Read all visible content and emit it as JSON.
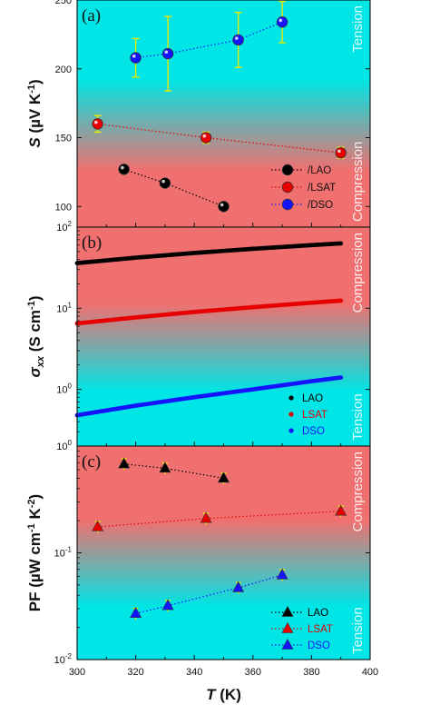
{
  "chart_data": [
    {
      "panel": "(a)",
      "type": "scatter",
      "ylabel": "S (µV K⁻¹)",
      "ylabel_parts": [
        "S",
        " (µV K",
        "-1",
        ")"
      ],
      "ylim": [
        85,
        250
      ],
      "yscale": "linear",
      "yticks": [
        100,
        150,
        200,
        250
      ],
      "ytick_labels": [
        "100",
        "150",
        "200",
        "250"
      ],
      "xlim": [
        300,
        400
      ],
      "background": {
        "top_color": "#00e5e5",
        "bottom_color": "#f07070",
        "label_top": "Tension",
        "label_bottom": "Compression"
      },
      "legend": {
        "position": "bottom-right",
        "entries": [
          "/LAO",
          "/LSAT",
          "/DSO"
        ]
      },
      "series": [
        {
          "name": "/LAO",
          "color": "#000000",
          "marker": "circle",
          "x": [
            316,
            330,
            350
          ],
          "y": [
            127,
            117,
            100
          ],
          "err": [
            3,
            3,
            3
          ]
        },
        {
          "name": "/LSAT",
          "color": "#e60000",
          "marker": "circle",
          "x": [
            307,
            344,
            390
          ],
          "y": [
            160,
            150,
            139
          ],
          "err": [
            6,
            4,
            4
          ]
        },
        {
          "name": "/DSO",
          "color": "#1414ff",
          "marker": "circle",
          "x": [
            320,
            331,
            355,
            370
          ],
          "y": [
            208,
            211,
            221,
            234
          ],
          "err": [
            14,
            27,
            20,
            15
          ]
        }
      ]
    },
    {
      "panel": "(b)",
      "type": "scatter",
      "ylabel_parts": [
        "σ",
        "xx",
        " (S cm",
        "-1",
        ")"
      ],
      "ylim": [
        0.2,
        100
      ],
      "yscale": "log",
      "yticks": [
        1,
        10,
        100
      ],
      "ytick_labels": [
        "10",
        "10",
        "10"
      ],
      "ytick_exponents": [
        "0",
        "1",
        "2"
      ],
      "xlim": [
        300,
        400
      ],
      "background": {
        "top_color": "#f07070",
        "bottom_color": "#00e5e5",
        "label_top": "Compression",
        "label_bottom": "Tension"
      },
      "legend": {
        "position": "bottom-right",
        "entries": [
          "LAO",
          "LSAT",
          "DSO"
        ]
      },
      "series": [
        {
          "name": "LAO",
          "color": "#000000",
          "marker": "dot",
          "x": [
            300,
            320,
            340,
            360,
            380,
            390
          ],
          "y": [
            36,
            42,
            48,
            54,
            60,
            63
          ]
        },
        {
          "name": "LSAT",
          "color": "#e60000",
          "marker": "dot",
          "x": [
            300,
            320,
            340,
            360,
            380,
            390
          ],
          "y": [
            6.5,
            7.7,
            9.0,
            10.3,
            11.7,
            12.4
          ]
        },
        {
          "name": "DSO",
          "color": "#1414ff",
          "marker": "dot",
          "x": [
            300,
            320,
            340,
            360,
            380,
            390
          ],
          "y": [
            0.48,
            0.63,
            0.8,
            1.0,
            1.26,
            1.4
          ]
        }
      ]
    },
    {
      "panel": "(c)",
      "type": "scatter",
      "ylabel_parts": [
        "PF (µW cm",
        "-1",
        " K",
        "-2",
        ")"
      ],
      "ylim": [
        0.01,
        1
      ],
      "yscale": "log",
      "yticks": [
        0.01,
        0.1,
        1
      ],
      "ytick_labels": [
        "10",
        "10",
        "10"
      ],
      "ytick_exponents": [
        "-2",
        "-1",
        "0"
      ],
      "xlabel_parts": [
        "T",
        " (K)"
      ],
      "xlim": [
        300,
        400
      ],
      "xticks": [
        300,
        320,
        340,
        360,
        380,
        400
      ],
      "xtick_labels": [
        "300",
        "320",
        "340",
        "360",
        "380",
        "400"
      ],
      "background": {
        "top_color": "#f07070",
        "bottom_color": "#00e5e5",
        "label_top": "Compression",
        "label_bottom": "Tension"
      },
      "legend": {
        "position": "bottom-right",
        "entries": [
          "LAO",
          "LSAT",
          "DSO"
        ]
      },
      "series": [
        {
          "name": "LAO",
          "color": "#000000",
          "marker": "triangle",
          "x": [
            316,
            330,
            350
          ],
          "y": [
            0.68,
            0.62,
            0.5
          ]
        },
        {
          "name": "LSAT",
          "color": "#e60000",
          "marker": "triangle",
          "x": [
            307,
            344,
            390
          ],
          "y": [
            0.175,
            0.21,
            0.245
          ]
        },
        {
          "name": "DSO",
          "color": "#1414ff",
          "marker": "triangle",
          "x": [
            320,
            331,
            355,
            370
          ],
          "y": [
            0.027,
            0.032,
            0.047,
            0.062
          ]
        }
      ]
    }
  ]
}
